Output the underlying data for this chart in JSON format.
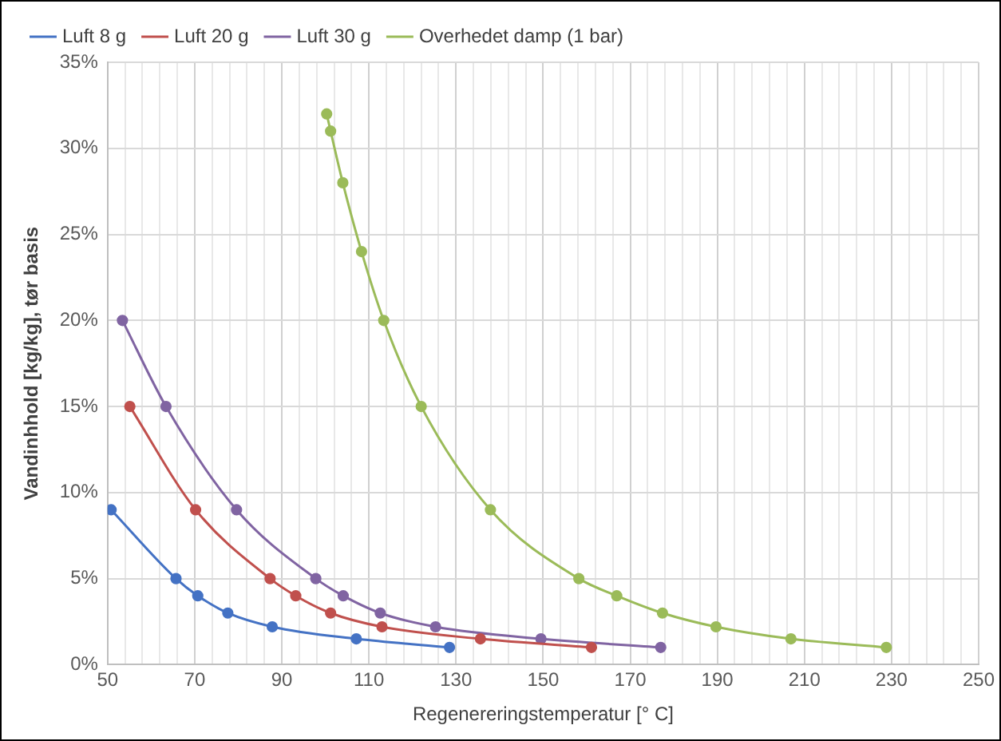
{
  "chart_data": {
    "type": "line",
    "xlabel": "Regenereringstemperatur [° C]",
    "ylabel": "Vandinhhold [kg/kg], tør basis",
    "xlim": [
      50,
      250
    ],
    "ylim": [
      0,
      35
    ],
    "xticks": [
      50,
      {
        "value": 54,
        "label": null
      },
      {
        "value": 58,
        "label": null
      },
      {
        "value": 62,
        "label": null
      },
      {
        "value": 66,
        "label": null
      },
      70,
      {
        "value": 74,
        "label": null
      },
      {
        "value": 78,
        "label": null
      },
      {
        "value": 82,
        "label": null
      },
      {
        "value": 86,
        "label": null
      },
      90,
      {
        "value": 94,
        "label": null
      },
      {
        "value": 98,
        "label": null
      },
      {
        "value": 102,
        "label": null
      },
      {
        "value": 106,
        "label": null
      },
      110,
      {
        "value": 114,
        "label": null
      },
      {
        "value": 118,
        "label": null
      },
      {
        "value": 122,
        "label": null
      },
      {
        "value": 126,
        "label": null
      },
      130,
      {
        "value": 134,
        "label": null
      },
      {
        "value": 138,
        "label": null
      },
      {
        "value": 142,
        "label": null
      },
      {
        "value": 146,
        "label": null
      },
      150,
      {
        "value": 154,
        "label": null
      },
      {
        "value": 158,
        "label": null
      },
      {
        "value": 162,
        "label": null
      },
      {
        "value": 166,
        "label": null
      },
      170,
      {
        "value": 174,
        "label": null
      },
      {
        "value": 178,
        "label": null
      },
      {
        "value": 182,
        "label": null
      },
      {
        "value": 186,
        "label": null
      },
      190,
      {
        "value": 194,
        "label": null
      },
      {
        "value": 198,
        "label": null
      },
      {
        "value": 202,
        "label": null
      },
      {
        "value": 206,
        "label": null
      },
      210,
      {
        "value": 214,
        "label": null
      },
      {
        "value": 218,
        "label": null
      },
      {
        "value": 222,
        "label": null
      },
      {
        "value": 226,
        "label": null
      },
      230,
      {
        "value": 234,
        "label": null
      },
      {
        "value": 238,
        "label": null
      },
      {
        "value": 242,
        "label": null
      },
      {
        "value": 246,
        "label": null
      },
      250
    ],
    "yticks": [
      {
        "value": 0,
        "label": "0%"
      },
      {
        "value": 5,
        "label": "5%"
      },
      {
        "value": 10,
        "label": "10%"
      },
      {
        "value": 15,
        "label": "15%"
      },
      {
        "value": 20,
        "label": "20%"
      },
      {
        "value": 25,
        "label": "25%"
      },
      {
        "value": 30,
        "label": "30%"
      },
      {
        "value": 35,
        "label": "35%"
      }
    ],
    "grid": true,
    "legend": "top",
    "marker": "circle",
    "line_style": "solid",
    "series": [
      {
        "name": "Luft 8 g",
        "color": "#4472c4",
        "x": [
          50.8,
          65.7,
          70.7,
          77.6,
          87.8,
          107.1,
          128.5
        ],
        "values": [
          9,
          5,
          4,
          3,
          2.2,
          1.5,
          1
        ]
      },
      {
        "name": "Luft 20 g",
        "color": "#c0504d",
        "x": [
          55.1,
          70.2,
          87.3,
          93.2,
          101.2,
          113,
          135.6,
          161.1
        ],
        "values": [
          15,
          9,
          5,
          4,
          3,
          2.2,
          1.5,
          1
        ]
      },
      {
        "name": "Luft 30 g",
        "color": "#8064a2",
        "x": [
          53.4,
          63.4,
          79.6,
          97.8,
          104.1,
          112.6,
          125.3,
          149.5,
          177
        ],
        "values": [
          20,
          15,
          9,
          5,
          4,
          3,
          2.2,
          1.5,
          1
        ]
      },
      {
        "name": "Overhedet damp (1 bar)",
        "color": "#9bbb59",
        "x": [
          100.3,
          101.2,
          104,
          108.3,
          113.4,
          122,
          137.9,
          158.2,
          166.9,
          177.4,
          189.7,
          206.9,
          228.8
        ],
        "values": [
          32,
          31,
          28,
          24,
          20,
          15,
          9,
          5,
          4,
          3,
          2.2,
          1.5,
          1
        ]
      }
    ]
  }
}
